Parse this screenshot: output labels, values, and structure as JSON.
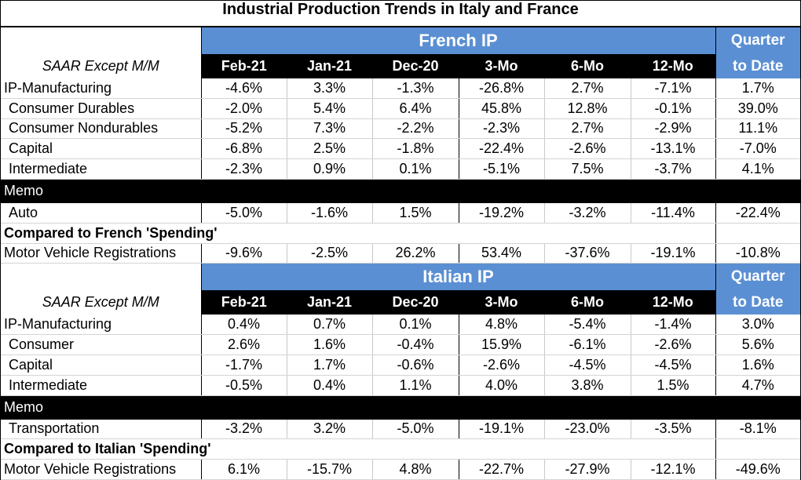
{
  "title": "Industrial Production Trends in Italy and France",
  "columns": [
    "Feb-21",
    "Jan-21",
    "Dec-20",
    "3-Mo",
    "6-Mo",
    "12-Mo"
  ],
  "qtd_line1": "Quarter",
  "qtd_line2": "to Date",
  "saar": "SAAR Except M/M",
  "memo": "Memo",
  "sections": [
    {
      "name": "French IP",
      "rows": [
        {
          "label": "IP-Manufacturing",
          "values": [
            "-4.6%",
            "3.3%",
            "-1.3%",
            "-26.8%",
            "2.7%",
            "-7.1%",
            "1.7%"
          ]
        },
        {
          "label": "Consumer Durables",
          "values": [
            "-2.0%",
            "5.4%",
            "6.4%",
            "45.8%",
            "12.8%",
            "-0.1%",
            "39.0%"
          ]
        },
        {
          "label": "Consumer Nondurables",
          "values": [
            "-5.2%",
            "7.3%",
            "-2.2%",
            "-2.3%",
            "2.7%",
            "-2.9%",
            "11.1%"
          ]
        },
        {
          "label": "Capital",
          "values": [
            "-6.8%",
            "2.5%",
            "-1.8%",
            "-22.4%",
            "-2.6%",
            "-13.1%",
            "-7.0%"
          ]
        },
        {
          "label": "Intermediate",
          "values": [
            "-2.3%",
            "0.9%",
            "0.1%",
            "-5.1%",
            "7.5%",
            "-3.7%",
            "4.1%"
          ]
        }
      ],
      "memo_row": {
        "label": "Auto",
        "values": [
          "-5.0%",
          "-1.6%",
          "1.5%",
          "-19.2%",
          "-3.2%",
          "-11.4%",
          "-22.4%"
        ]
      },
      "compared_label": "Compared to French 'Spending'",
      "compared_row": {
        "label": "Motor Vehicle Registrations",
        "values": [
          "-9.6%",
          "-2.5%",
          "26.2%",
          "53.4%",
          "-37.6%",
          "-19.1%",
          "-10.8%"
        ]
      }
    },
    {
      "name": "Italian IP",
      "rows": [
        {
          "label": "IP-Manufacturing",
          "values": [
            "0.4%",
            "0.7%",
            "0.1%",
            "4.8%",
            "-5.4%",
            "-1.4%",
            "3.0%"
          ]
        },
        {
          "label": "Consumer",
          "values": [
            "2.6%",
            "1.6%",
            "-0.4%",
            "15.9%",
            "-6.1%",
            "-2.6%",
            "5.6%"
          ]
        },
        {
          "label": "Capital",
          "values": [
            "-1.7%",
            "1.7%",
            "-0.6%",
            "-2.6%",
            "-4.5%",
            "-4.5%",
            "1.6%"
          ]
        },
        {
          "label": "Intermediate",
          "values": [
            "-0.5%",
            "0.4%",
            "1.1%",
            "4.0%",
            "3.8%",
            "1.5%",
            "4.7%"
          ]
        }
      ],
      "memo_row": {
        "label": "Transportation",
        "values": [
          "-3.2%",
          "3.2%",
          "-5.0%",
          "-19.1%",
          "-23.0%",
          "-3.5%",
          "-8.1%"
        ]
      },
      "compared_label": "Compared to Italian 'Spending'",
      "compared_row": {
        "label": "Motor Vehicle Registrations",
        "values": [
          "6.1%",
          "-15.7%",
          "4.8%",
          "-22.7%",
          "-27.9%",
          "-12.1%",
          "-49.6%"
        ]
      }
    }
  ]
}
